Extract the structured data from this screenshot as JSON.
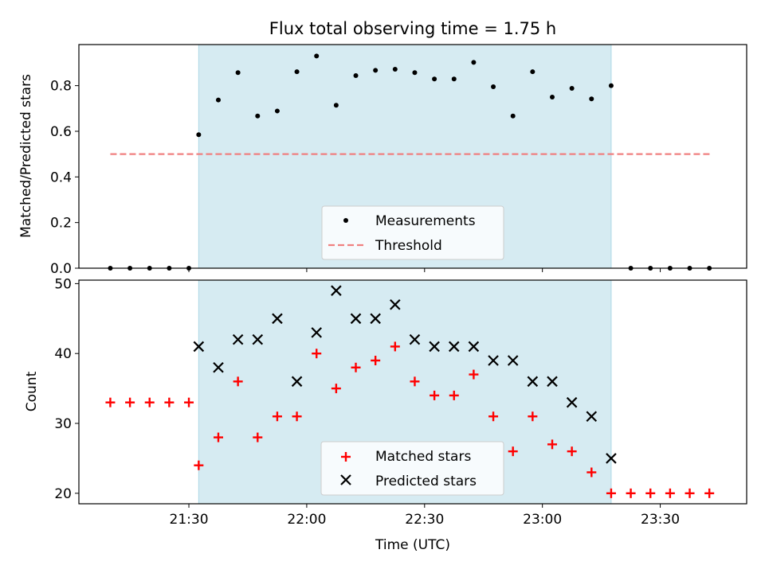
{
  "chart_data": [
    {
      "type": "scatter",
      "title": "Flux total observing time = 1.75 h",
      "xlabel": "",
      "ylabel": "Matched/Predicted stars",
      "ylim": [
        0,
        0.98
      ],
      "yticks": [
        "0.0",
        "0.2",
        "0.4",
        "0.6",
        "0.8"
      ],
      "ytick_values": [
        0,
        0.2,
        0.4,
        0.6,
        0.8
      ],
      "xlim": [
        "21:02",
        "23:52"
      ],
      "xticks_shown": false,
      "shaded_span": {
        "start": "21:32.5",
        "end": "23:17.5",
        "color": "#add8e6"
      },
      "series": [
        {
          "name": "Measurements",
          "marker": "dot",
          "color": "#000000",
          "x": [
            "21:10",
            "21:15",
            "21:20",
            "21:25",
            "21:30",
            "21:32.5",
            "21:37.5",
            "21:42.5",
            "21:47.5",
            "21:52.5",
            "21:57.5",
            "22:02.5",
            "22:07.5",
            "22:12.5",
            "22:17.5",
            "22:22.5",
            "22:27.5",
            "22:32.5",
            "22:37.5",
            "22:42.5",
            "22:47.5",
            "22:52.5",
            "22:57.5",
            "23:02.5",
            "23:07.5",
            "23:12.5",
            "23:17.5",
            "23:22.5",
            "23:27.5",
            "23:32.5",
            "23:37.5",
            "23:42.5"
          ],
          "y": [
            0,
            0,
            0,
            0,
            0,
            0.585,
            0.737,
            0.857,
            0.667,
            0.689,
            0.861,
            0.93,
            0.714,
            0.844,
            0.867,
            0.872,
            0.857,
            0.829,
            0.829,
            0.902,
            0.795,
            0.667,
            0.861,
            0.75,
            0.788,
            0.742,
            0.8,
            0,
            0,
            0,
            0,
            0
          ]
        },
        {
          "name": "Threshold",
          "style": "dashed",
          "color": "#f08080",
          "x": [
            "21:10",
            "23:43"
          ],
          "y": [
            0.5,
            0.5
          ]
        }
      ],
      "legend": {
        "position": "lower-center",
        "entries": [
          "Measurements",
          "Threshold"
        ]
      }
    },
    {
      "type": "scatter",
      "title": "",
      "xlabel": "Time (UTC)",
      "ylabel": "Count",
      "ylim": [
        18.5,
        50.5
      ],
      "yticks": [
        "20",
        "30",
        "40",
        "50"
      ],
      "ytick_values": [
        20,
        30,
        40,
        50
      ],
      "xlim": [
        "21:02",
        "23:52"
      ],
      "xticks": [
        "21:30",
        "22:00",
        "22:30",
        "23:00",
        "23:30"
      ],
      "shaded_span": {
        "start": "21:32.5",
        "end": "23:17.5",
        "color": "#add8e6"
      },
      "series": [
        {
          "name": "Matched stars",
          "marker": "plus",
          "color": "#ff0000",
          "x": [
            "21:10",
            "21:15",
            "21:20",
            "21:25",
            "21:30",
            "21:32.5",
            "21:37.5",
            "21:42.5",
            "21:47.5",
            "21:52.5",
            "21:57.5",
            "22:02.5",
            "22:07.5",
            "22:12.5",
            "22:17.5",
            "22:22.5",
            "22:27.5",
            "22:32.5",
            "22:37.5",
            "22:42.5",
            "22:47.5",
            "22:52.5",
            "22:57.5",
            "23:02.5",
            "23:07.5",
            "23:12.5",
            "23:17.5",
            "23:22.5",
            "23:27.5",
            "23:32.5",
            "23:37.5",
            "23:42.5"
          ],
          "y": [
            33,
            33,
            33,
            33,
            33,
            24,
            28,
            36,
            28,
            31,
            31,
            40,
            35,
            38,
            39,
            41,
            36,
            34,
            34,
            37,
            31,
            26,
            31,
            27,
            26,
            23,
            20,
            20,
            20,
            20,
            20,
            20
          ]
        },
        {
          "name": "Predicted stars",
          "marker": "x",
          "color": "#000000",
          "x": [
            "21:32.5",
            "21:37.5",
            "21:42.5",
            "21:47.5",
            "21:52.5",
            "21:57.5",
            "22:02.5",
            "22:07.5",
            "22:12.5",
            "22:17.5",
            "22:22.5",
            "22:27.5",
            "22:32.5",
            "22:37.5",
            "22:42.5",
            "22:47.5",
            "22:52.5",
            "22:57.5",
            "23:02.5",
            "23:07.5",
            "23:12.5",
            "23:17.5"
          ],
          "y": [
            41,
            38,
            42,
            42,
            45,
            36,
            43,
            49,
            45,
            45,
            47,
            42,
            41,
            41,
            41,
            39,
            39,
            36,
            36,
            33,
            31,
            25
          ]
        }
      ],
      "legend": {
        "position": "lower-center",
        "entries": [
          "Matched stars",
          "Predicted stars"
        ]
      }
    }
  ]
}
